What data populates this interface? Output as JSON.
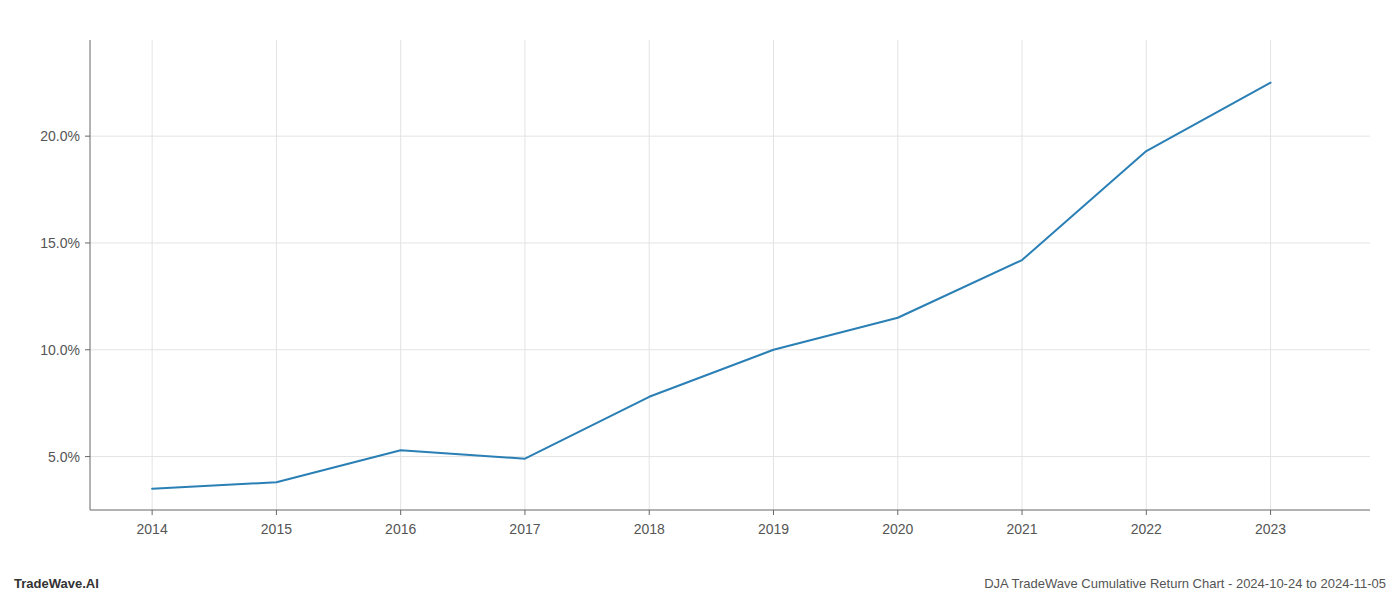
{
  "chart_data": {
    "type": "line",
    "x": [
      2014,
      2015,
      2016,
      2017,
      2018,
      2019,
      2020,
      2021,
      2022,
      2023
    ],
    "values": [
      3.5,
      3.8,
      5.3,
      4.9,
      7.8,
      10.0,
      11.5,
      14.2,
      19.3,
      22.5
    ],
    "color": "#2a7fb5",
    "xlim": [
      2013.5,
      2023.8
    ],
    "ylim": [
      2.5,
      24.5
    ],
    "xticks": [
      2014,
      2015,
      2016,
      2017,
      2018,
      2019,
      2020,
      2021,
      2022,
      2023
    ],
    "yticks": [
      {
        "value": 5.0,
        "label": "5.0%"
      },
      {
        "value": 10.0,
        "label": "10.0%"
      },
      {
        "value": 15.0,
        "label": "15.0%"
      },
      {
        "value": 20.0,
        "label": "20.0%"
      }
    ],
    "grid": true,
    "annotations": [
      "TradeWave.AI",
      "DJA TradeWave Cumulative Return Chart - 2024-10-24 to 2024-11-05"
    ]
  }
}
